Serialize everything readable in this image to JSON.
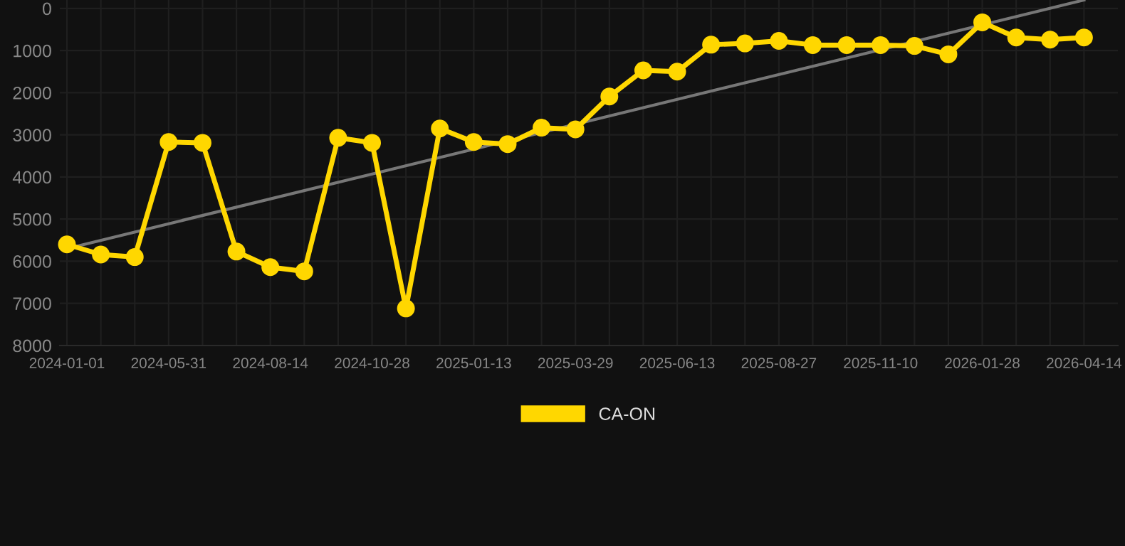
{
  "chart_data": {
    "type": "line",
    "categories": [
      "2024-01-01",
      null,
      null,
      "2024-05-31",
      null,
      null,
      "2024-08-14",
      null,
      null,
      "2024-10-28",
      null,
      null,
      "2025-01-13",
      null,
      null,
      "2025-03-29",
      null,
      null,
      "2025-06-13",
      null,
      null,
      "2025-08-27",
      null,
      null,
      "2025-11-10",
      null,
      null,
      "2026-01-28",
      null,
      null,
      "2026-04-14"
    ],
    "series": [
      {
        "name": "CA-ON",
        "color": "#ffd700",
        "marker": "circle",
        "values": [
          5600,
          5840,
          5900,
          3170,
          3190,
          5770,
          6140,
          6240,
          3070,
          3190,
          7120,
          2850,
          3170,
          3220,
          2830,
          2870,
          2090,
          1470,
          1500,
          860,
          830,
          770,
          870,
          870,
          870,
          890,
          1090,
          330,
          690,
          740,
          690
        ]
      },
      {
        "type": "line",
        "color": "#777777",
        "marker": "none",
        "values": [
          5700,
          null,
          null,
          null,
          null,
          null,
          null,
          null,
          null,
          null,
          null,
          null,
          null,
          null,
          null,
          null,
          null,
          null,
          null,
          null,
          null,
          null,
          null,
          null,
          null,
          null,
          null,
          null,
          null,
          null,
          -200
        ]
      }
    ],
    "ylim": [
      8000,
      -200
    ],
    "yticks": [
      0,
      1000,
      2000,
      3000,
      4000,
      5000,
      6000,
      7000,
      8000
    ],
    "grid": true,
    "legend": "bottom",
    "line_style": "solid"
  }
}
